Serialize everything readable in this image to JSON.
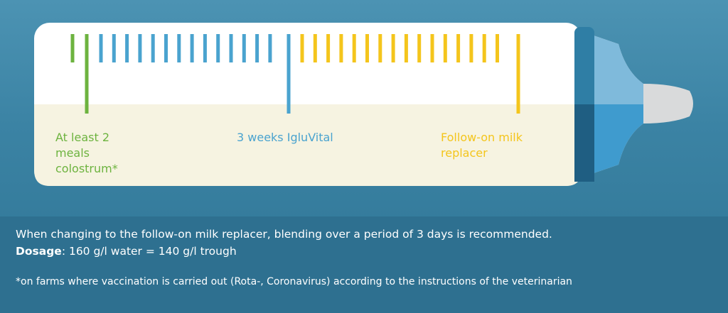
{
  "labels": [
    {
      "text": "At least 2 meals colostrum*",
      "color": "#6db33f"
    },
    {
      "text": "3 weeks IgluVital",
      "color": "#4aa3cf"
    },
    {
      "text": "Follow-on milk replacer",
      "color": "#f4c51c"
    }
  ],
  "note": {
    "line1": "When changing to the follow-on milk replacer, blending over a period of 3 days is recommended.",
    "dosage_label": "Dosage",
    "dosage_text": ": 160 g/l water = 140 g/l trough",
    "footnote": "*on farms where vaccination is carried out (Rota-, Coronavirus) according to the instructions of the veterinarian"
  }
}
